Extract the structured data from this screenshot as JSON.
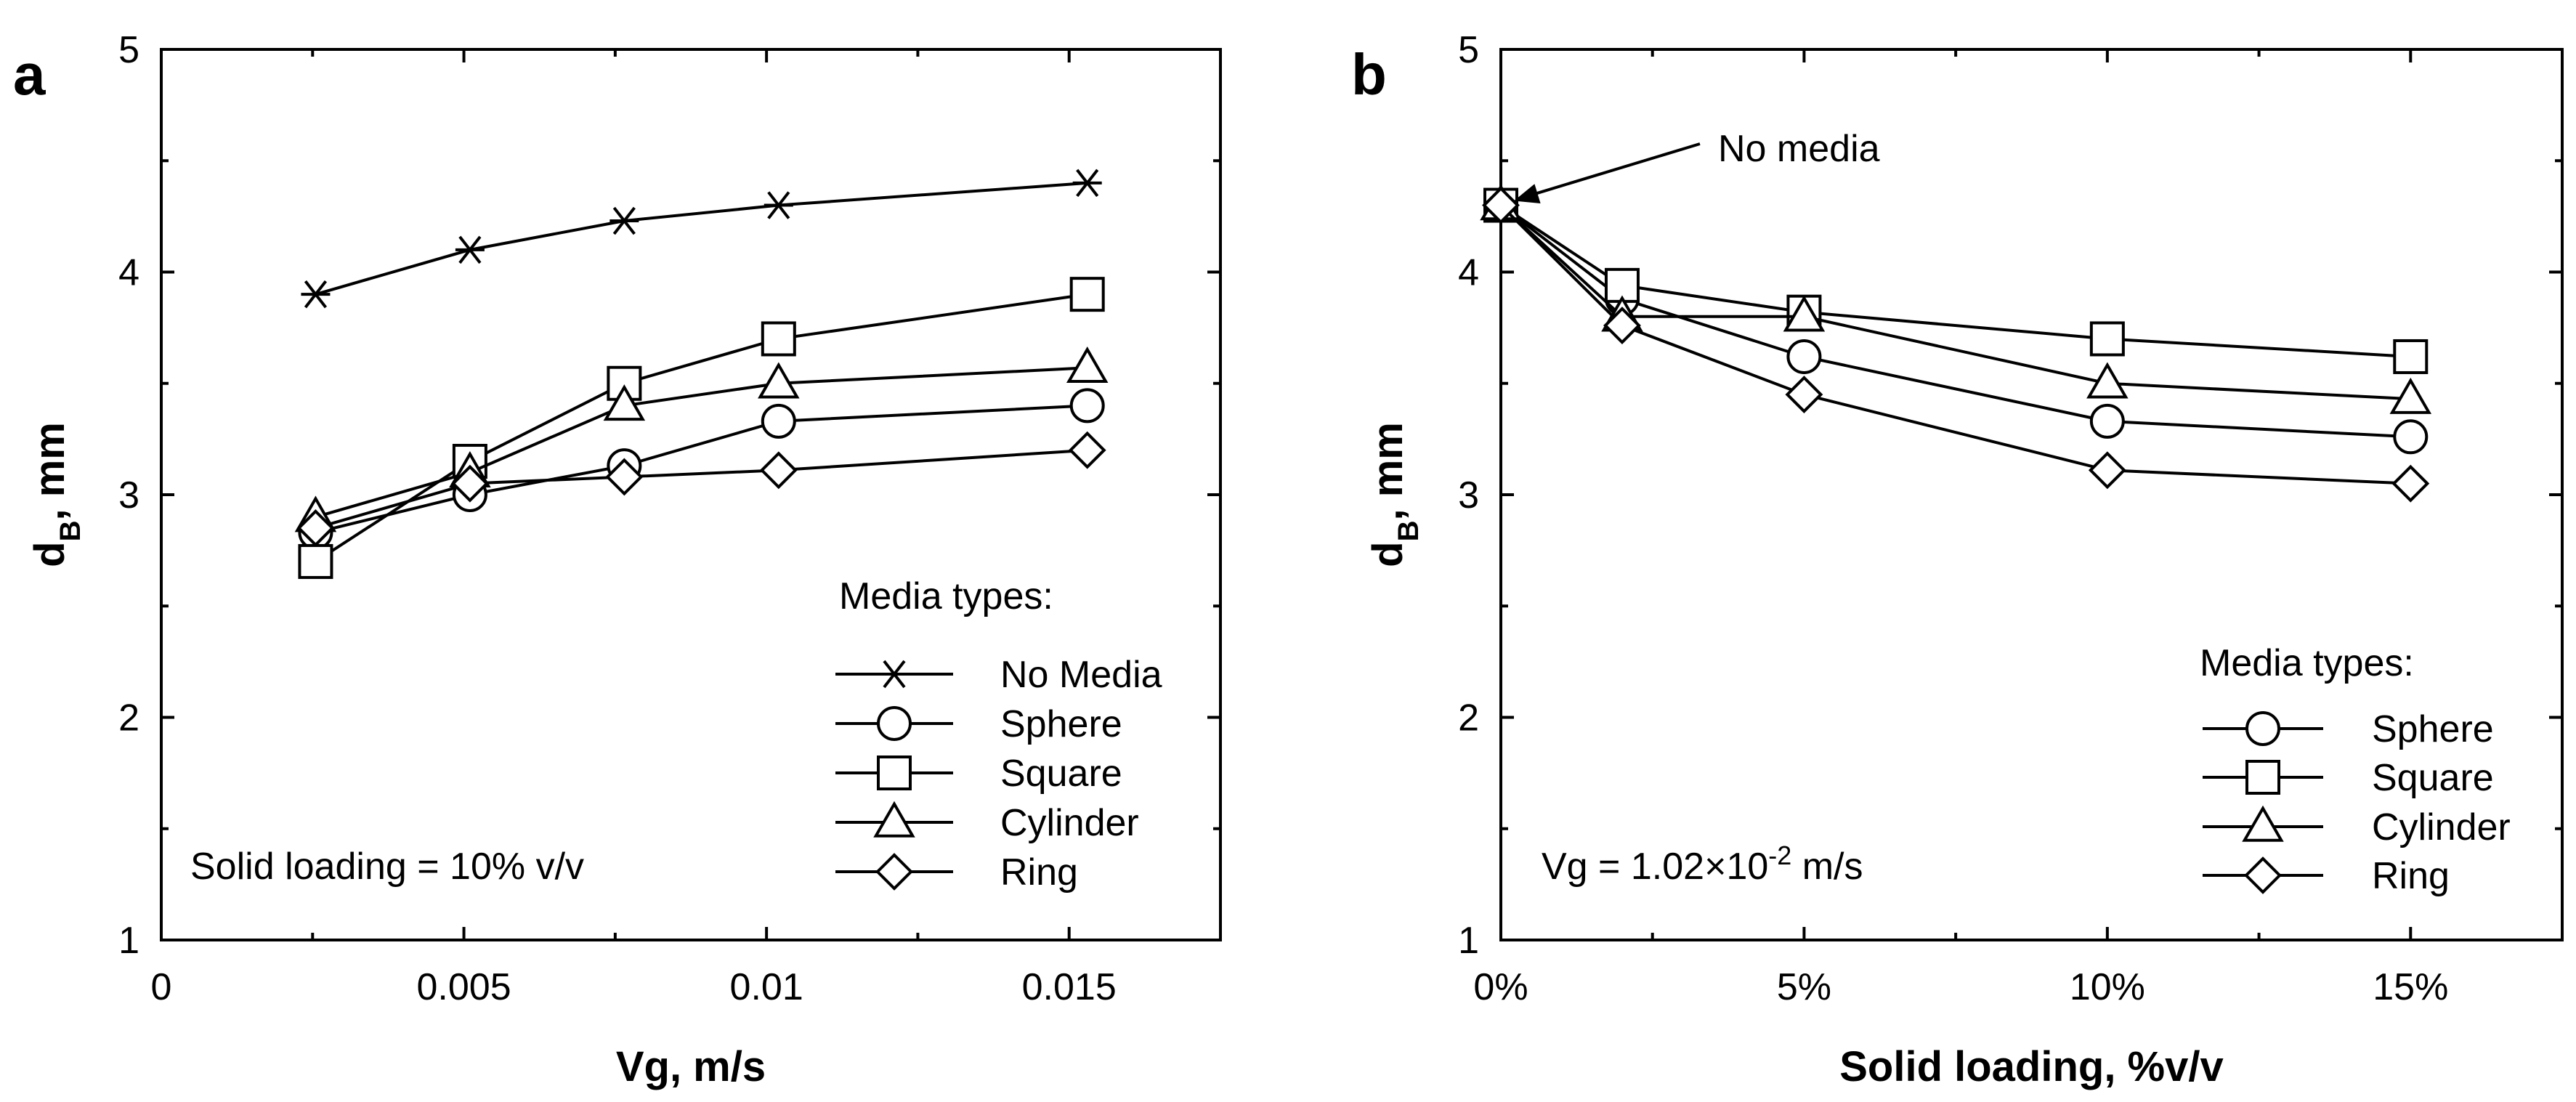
{
  "chart_data": [
    {
      "panel": "a",
      "type": "line",
      "title": "",
      "xlabel": "Vg, m/s",
      "ylabel_main": "d",
      "ylabel_sub": "B",
      "ylabel_rest": ", mm",
      "xlim": [
        0,
        0.0175
      ],
      "ylim": [
        1,
        5
      ],
      "xticks": [
        0,
        0.005,
        0.01,
        0.015
      ],
      "xtick_labels": [
        "0",
        "0.005",
        "0.01",
        "0.015"
      ],
      "yticks": [
        1,
        2,
        3,
        4,
        5
      ],
      "ytick_labels": [
        "1",
        "2",
        "3",
        "4",
        "5"
      ],
      "legend_title": "Media types:",
      "legend_position": "bottom-right",
      "annotation": "Solid loading = 10% v/v",
      "series": [
        {
          "name": "No Media",
          "marker": "asterisk",
          "x": [
            0.00255,
            0.0051,
            0.00765,
            0.0102,
            0.0153
          ],
          "y": [
            3.9,
            4.1,
            4.23,
            4.3,
            4.4
          ]
        },
        {
          "name": "Sphere",
          "marker": "circle",
          "x": [
            0.00255,
            0.0051,
            0.00765,
            0.0102,
            0.0153
          ],
          "y": [
            2.83,
            3.0,
            3.13,
            3.33,
            3.4
          ]
        },
        {
          "name": "Square",
          "marker": "square",
          "x": [
            0.00255,
            0.0051,
            0.00765,
            0.0102,
            0.0153
          ],
          "y": [
            2.7,
            3.15,
            3.5,
            3.7,
            3.9
          ]
        },
        {
          "name": "Cylinder",
          "marker": "triangle",
          "x": [
            0.00255,
            0.0051,
            0.00765,
            0.0102,
            0.0153
          ],
          "y": [
            2.9,
            3.1,
            3.4,
            3.5,
            3.57
          ]
        },
        {
          "name": "Ring",
          "marker": "diamond",
          "x": [
            0.00255,
            0.0051,
            0.00765,
            0.0102,
            0.0153
          ],
          "y": [
            2.85,
            3.05,
            3.08,
            3.11,
            3.2
          ]
        }
      ]
    },
    {
      "panel": "b",
      "type": "line",
      "title": "",
      "xlabel": "Solid loading, %v/v",
      "ylabel_main": "d",
      "ylabel_sub": "B",
      "ylabel_rest": ", mm",
      "xlim": [
        0,
        17.5
      ],
      "ylim": [
        1,
        5
      ],
      "xticks": [
        0,
        5,
        10,
        15
      ],
      "xtick_labels": [
        "0%",
        "5%",
        "10%",
        "15%"
      ],
      "yticks": [
        1,
        2,
        3,
        4,
        5
      ],
      "ytick_labels": [
        "1",
        "2",
        "3",
        "4",
        "5"
      ],
      "legend_title": "Media types:",
      "legend_position": "bottom-right",
      "annotation_base": "Vg = 1.02×10",
      "annotation_exp": "-2",
      "annotation_unit": " m/s",
      "callout": "No media",
      "callout_point": [
        0,
        4.3
      ],
      "series": [
        {
          "name": "Sphere",
          "marker": "circle",
          "x": [
            0,
            2,
            5,
            10,
            15
          ],
          "y": [
            4.3,
            3.88,
            3.62,
            3.33,
            3.26
          ]
        },
        {
          "name": "Square",
          "marker": "square",
          "x": [
            0,
            2,
            5,
            10,
            15
          ],
          "y": [
            4.3,
            3.94,
            3.82,
            3.7,
            3.62
          ]
        },
        {
          "name": "Cylinder",
          "marker": "triangle",
          "x": [
            0,
            2,
            5,
            10,
            15
          ],
          "y": [
            4.3,
            3.8,
            3.8,
            3.5,
            3.43
          ]
        },
        {
          "name": "Ring",
          "marker": "diamond",
          "x": [
            0,
            2,
            5,
            10,
            15
          ],
          "y": [
            4.3,
            3.76,
            3.45,
            3.11,
            3.05
          ]
        }
      ]
    }
  ]
}
